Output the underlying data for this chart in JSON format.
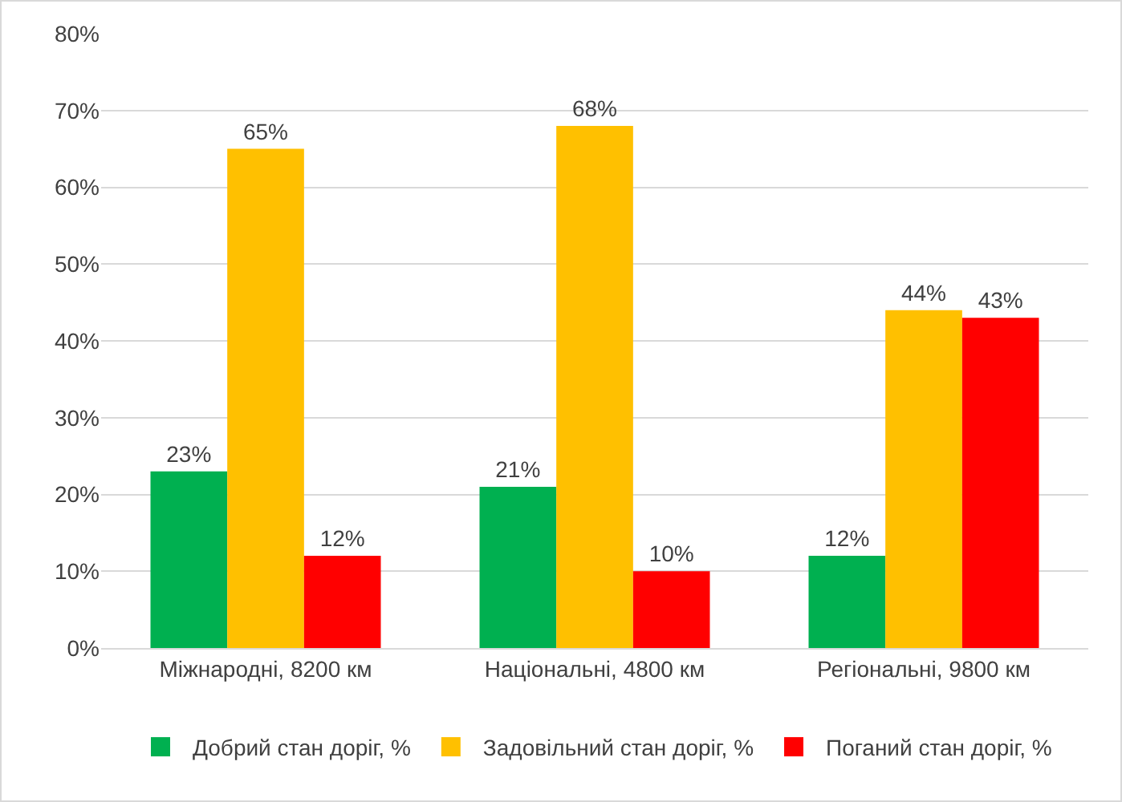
{
  "chart_data": {
    "type": "bar",
    "categories": [
      "Міжнародні, 8200 км",
      "Національні, 4800 км",
      "Регіональні, 9800 км"
    ],
    "series": [
      {
        "name": "Добрий стан доріг, %",
        "color": "#00b050",
        "values": [
          23,
          21,
          12
        ],
        "value_labels": [
          "23%",
          "21%",
          "12%"
        ]
      },
      {
        "name": "Задовільний стан доріг, %",
        "color": "#ffc000",
        "values": [
          65,
          68,
          44
        ],
        "value_labels": [
          "65%",
          "68%",
          "44%"
        ]
      },
      {
        "name": "Поганий стан доріг, %",
        "color": "#ff0000",
        "values": [
          12,
          10,
          43
        ],
        "value_labels": [
          "12%",
          "10%",
          "43%"
        ]
      }
    ],
    "ylim": [
      0,
      80
    ],
    "yticks": [
      {
        "value": 0,
        "label": "0%"
      },
      {
        "value": 10,
        "label": "10%"
      },
      {
        "value": 20,
        "label": "20%"
      },
      {
        "value": 30,
        "label": "30%"
      },
      {
        "value": 40,
        "label": "40%"
      },
      {
        "value": 50,
        "label": "50%"
      },
      {
        "value": 60,
        "label": "60%"
      },
      {
        "value": 70,
        "label": "70%"
      },
      {
        "value": 80,
        "label": "80%"
      }
    ],
    "grid": "y",
    "legend": "bottom"
  }
}
